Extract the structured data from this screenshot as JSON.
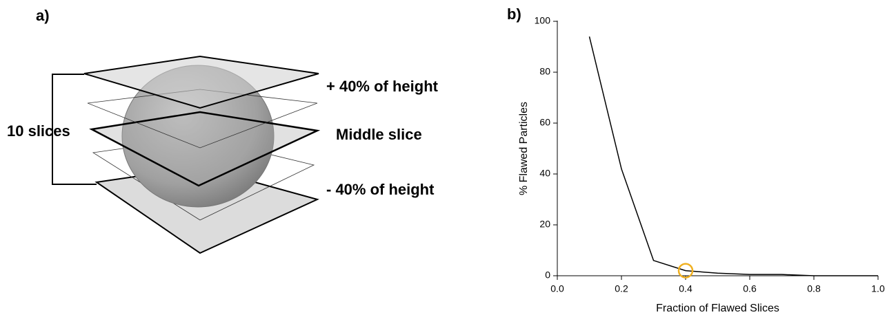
{
  "diagram": {
    "panel_label": "a)",
    "bracket_label": "10 slices",
    "top_label": "+ 40% of height",
    "middle_label": "Middle slice",
    "bottom_label": "- 40% of height"
  },
  "chart_data": {
    "type": "line",
    "panel_label": "b)",
    "x_label": "Fraction of Flawed Slices",
    "y_label": "% Flawed Particles",
    "x": [
      0.1,
      0.2,
      0.3,
      0.4,
      0.5,
      0.6,
      0.7,
      0.8,
      0.9,
      1.0
    ],
    "series": [
      {
        "color": "#000000",
        "values": [
          94,
          42,
          6,
          2,
          1,
          0.5,
          0.5,
          0,
          0,
          0
        ]
      }
    ],
    "highlight": {
      "x": 0.4,
      "y": 2,
      "color": "#f0b020"
    },
    "xlim": [
      0,
      1
    ],
    "xticks": [
      {
        "value": 0,
        "label": "0.0"
      },
      {
        "value": 0.2,
        "label": "0.2"
      },
      {
        "value": 0.4,
        "label": "0.4"
      },
      {
        "value": 0.6,
        "label": "0.6"
      },
      {
        "value": 0.8,
        "label": "0.8"
      },
      {
        "value": 1,
        "label": "1.0"
      }
    ],
    "ylim": [
      0,
      100
    ],
    "yticks": [
      0,
      20,
      40,
      60,
      80,
      100
    ]
  }
}
